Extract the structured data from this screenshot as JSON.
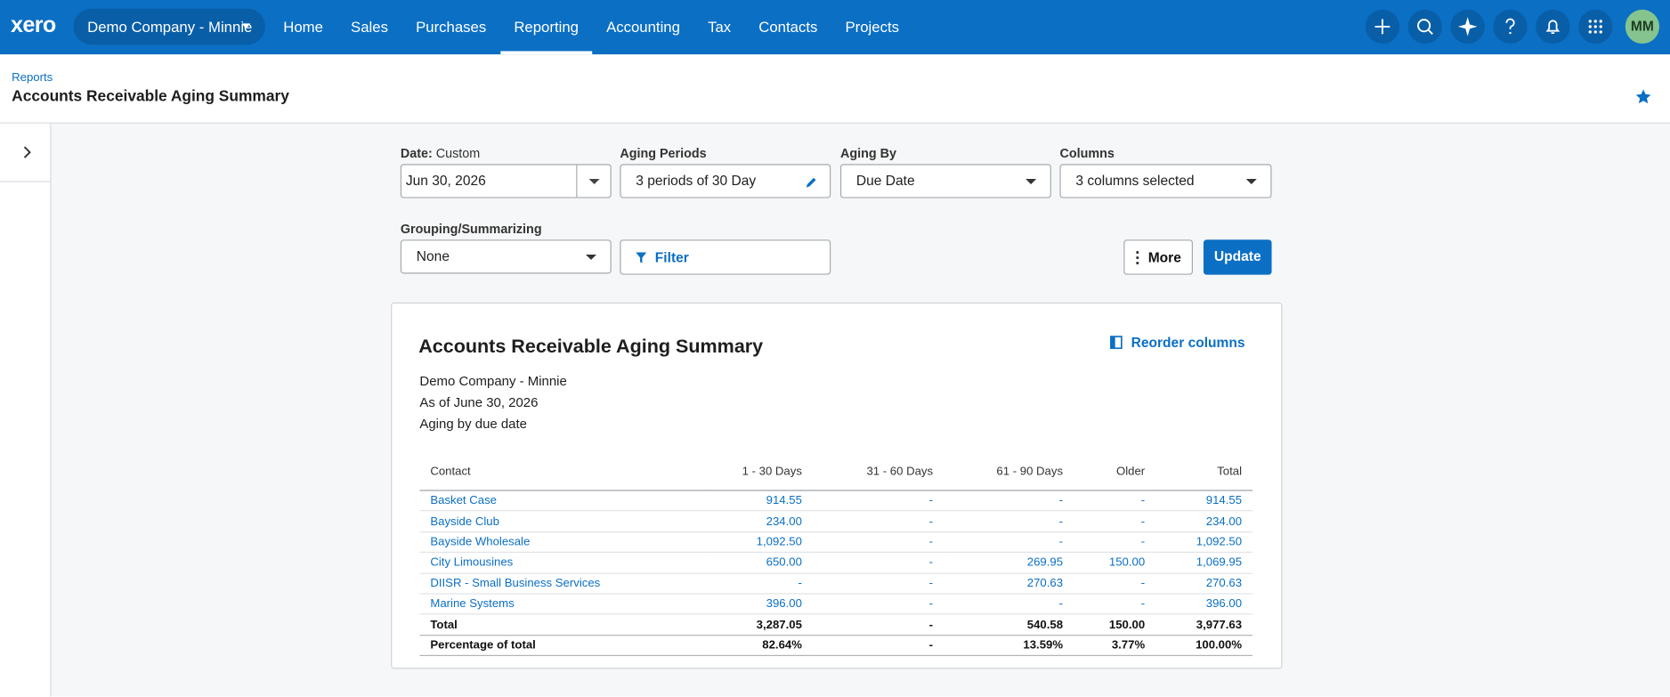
{
  "nav": {
    "logo": "xero",
    "org": "Demo Company - Minnie",
    "items": [
      "Home",
      "Sales",
      "Purchases",
      "Reporting",
      "Accounting",
      "Tax",
      "Contacts",
      "Projects"
    ],
    "active": 3,
    "avatar": "MM"
  },
  "header": {
    "breadcrumb": "Reports",
    "title": "Accounts Receivable Aging Summary"
  },
  "filters": {
    "date_label": "Date:",
    "date_mode": "Custom",
    "date": "Jun 30, 2026",
    "aging_periods_label": "Aging Periods",
    "aging_periods": "3 periods of 30 Day",
    "aging_by_label": "Aging By",
    "aging_by": "Due Date",
    "columns_label": "Columns",
    "columns": "3 columns selected",
    "grouping_label": "Grouping/Summarizing",
    "grouping": "None",
    "filter": "Filter",
    "more": "More",
    "update": "Update"
  },
  "report": {
    "title": "Accounts Receivable Aging Summary",
    "reorder": "Reorder columns",
    "company": "Demo Company - Minnie",
    "as_of": "As of June 30, 2026",
    "aging_note": "Aging by due date",
    "table": {
      "header": [
        "Contact",
        "1 - 30 Days",
        "31 - 60 Days",
        "61 - 90 Days",
        "Older",
        "Total"
      ],
      "rows": [
        [
          "Basket Case",
          "914.55",
          "-",
          "-",
          "-",
          "914.55"
        ],
        [
          "Bayside Club",
          "234.00",
          "-",
          "-",
          "-",
          "234.00"
        ],
        [
          "Bayside Wholesale",
          "1,092.50",
          "-",
          "-",
          "-",
          "1,092.50"
        ],
        [
          "City Limousines",
          "650.00",
          "-",
          "269.95",
          "150.00",
          "1,069.95"
        ],
        [
          "DIISR - Small Business Services",
          "-",
          "-",
          "270.63",
          "-",
          "270.63"
        ],
        [
          "Marine Systems",
          "396.00",
          "-",
          "-",
          "-",
          "396.00"
        ]
      ],
      "total": [
        "Total",
        "3,287.05",
        "-",
        "540.58",
        "150.00",
        "3,977.63"
      ],
      "percent": [
        "Percentage of total",
        "82.64%",
        "-",
        "13.59%",
        "3.77%",
        "100.00%"
      ]
    }
  }
}
